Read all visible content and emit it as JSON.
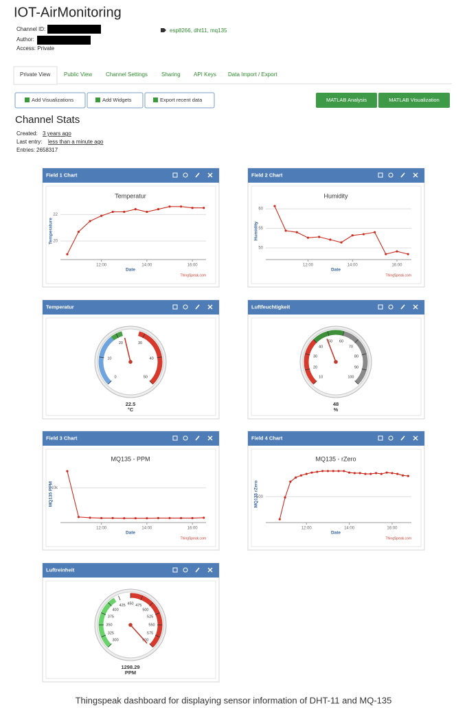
{
  "header": {
    "title": "IOT-AirMonitoring",
    "channel_id_label": "Channel ID:",
    "author_label": "Author:",
    "access": "Access: Private",
    "tags": "esp8266, dht11, mq135"
  },
  "tabs": [
    "Private View",
    "Public View",
    "Channel Settings",
    "Sharing",
    "API Keys",
    "Data Import / Export"
  ],
  "buttons": [
    "Add Visualizations",
    "Add Widgets",
    "Export recent data"
  ],
  "matlab_buttons": [
    "MATLAB Analysis",
    "MATLAB Visualization"
  ],
  "stats": {
    "title": "Channel Stats",
    "created_label": "Created:",
    "created": "3 years ago",
    "last_entry_label": "Last entry:",
    "last_entry": "less than a minute ago",
    "entries_label": "Entries:",
    "entries": 2658317
  },
  "widgets": [
    {
      "header": "Field 1 Chart",
      "chart": {
        "type": "line",
        "title": "Temperatur",
        "x_label": "Date",
        "y_label": "Temperature",
        "credit": "ThingSpeak.com",
        "color": "#cc2a1e",
        "x": [
          10.5,
          11,
          11.5,
          12,
          12.5,
          13,
          13.5,
          14,
          14.5,
          15,
          15.5,
          16,
          16.5
        ],
        "values": [
          19.0,
          20.7,
          21.5,
          21.9,
          22.2,
          22.2,
          22.4,
          22.2,
          22.4,
          22.6,
          22.6,
          22.5,
          22.5
        ],
        "xlim": [
          10.2,
          16.6
        ],
        "xticks": [
          {
            "value": 12,
            "label": "12:00"
          },
          {
            "value": 14,
            "label": "14:00"
          },
          {
            "value": 16,
            "label": "16:00"
          }
        ],
        "ylim": [
          18.6,
          22.9
        ],
        "yticks": [
          20,
          22
        ]
      }
    },
    {
      "header": "Field 2 Chart",
      "chart": {
        "type": "line",
        "title": "Humidity",
        "x_label": "Date",
        "y_label": "Humidity",
        "credit": "ThingSpeak.com",
        "color": "#cc2a1e",
        "x": [
          10.5,
          11,
          11.5,
          12,
          12.5,
          13,
          13.5,
          14,
          14.5,
          15,
          15.5,
          16,
          16.5
        ],
        "values": [
          60.7,
          54.4,
          54.0,
          52.6,
          52.8,
          52.1,
          51.4,
          53.2,
          53.5,
          54.0,
          48.4,
          49.1,
          48.4
        ],
        "xlim": [
          10.1,
          16.65
        ],
        "xticks": [
          {
            "value": 12,
            "label": "12:00"
          },
          {
            "value": 14,
            "label": "14:00"
          },
          {
            "value": 16,
            "label": "16:00"
          }
        ],
        "ylim": [
          47,
          61.6
        ],
        "yticks": [
          50,
          55,
          60
        ]
      }
    },
    {
      "header": "Temperatur",
      "gauge": {
        "type": "gauge",
        "value": 22.5,
        "unit": "°C",
        "lim": [
          0,
          50
        ],
        "ticks": [
          0,
          10,
          20,
          30,
          40,
          50
        ],
        "bands": [
          {
            "from": 0,
            "to": 18,
            "color": "#6fa3de"
          },
          {
            "from": 18,
            "to": 22,
            "color": "#4a9e45"
          },
          {
            "from": 28,
            "to": 50,
            "color": "#d63a2c"
          }
        ]
      }
    },
    {
      "header": "Luftfeuchtigkeit",
      "gauge": {
        "type": "gauge",
        "value": 48,
        "unit": "%",
        "lim": [
          10,
          100
        ],
        "ticks": [
          10,
          20,
          30,
          40,
          50,
          60,
          70,
          80,
          90,
          100
        ],
        "bands": [
          {
            "from": 10,
            "to": 40,
            "color": "#d63a2c"
          },
          {
            "from": 40,
            "to": 60,
            "color": "#3f8f3a"
          },
          {
            "from": 60,
            "to": 100,
            "color": "#8a8a8a"
          }
        ]
      }
    },
    {
      "header": "Field 3 Chart",
      "chart": {
        "type": "line",
        "title": "MQ135 - PPM",
        "x_label": "Date",
        "y_label": "MQ135 PPM",
        "credit": "ThingSpeak.com",
        "color": "#cc2a1e",
        "x": [
          10.5,
          11,
          11.5,
          12,
          12.5,
          13,
          13.5,
          14,
          14.5,
          15,
          15.5,
          16,
          16.5
        ],
        "values": [
          14800,
          1600,
          1400,
          1300,
          1300,
          1250,
          1250,
          1250,
          1300,
          1300,
          1300,
          1300,
          1400
        ],
        "xlim": [
          10.2,
          16.6
        ],
        "xticks": [
          {
            "value": 12,
            "label": "12:00"
          },
          {
            "value": 14,
            "label": "14:00"
          },
          {
            "value": 16,
            "label": "16:00"
          }
        ],
        "ylim": [
          0,
          16400
        ],
        "yticks": [
          {
            "value": 10000,
            "label": "10k"
          }
        ]
      }
    },
    {
      "header": "Field 4 Chart",
      "chart": {
        "type": "line",
        "title": "MQ135 - rZero",
        "x_label": "Date",
        "y_label": "MQ135 rZero",
        "credit": "ThingSpeak.com",
        "color": "#cc2a1e",
        "x": [
          10.75,
          11,
          11.25,
          11.5,
          11.75,
          12,
          12.25,
          12.5,
          12.75,
          13,
          13.25,
          13.5,
          13.75,
          14,
          14.25,
          14.5,
          14.75,
          15,
          15.25,
          15.5,
          15.75,
          16,
          16.25,
          16.5,
          16.75
        ],
        "values": [
          413,
          497,
          558,
          574,
          582,
          588,
          593,
          596,
          599,
          599,
          599,
          599,
          599,
          593,
          591,
          591,
          588,
          588,
          591,
          588,
          593,
          591,
          588,
          582,
          580
        ],
        "xlim": [
          10.1,
          16.9
        ],
        "xticks": [
          {
            "value": 12,
            "label": "12:00"
          },
          {
            "value": 14,
            "label": "14:00"
          },
          {
            "value": 16,
            "label": "16:00"
          }
        ],
        "ylim": [
          400,
          620
        ],
        "yticks": [
          500
        ]
      }
    },
    {
      "header": "Luftreinheit",
      "gauge": {
        "type": "gauge",
        "value": 1298.29,
        "unit": "PPM",
        "lim": [
          300,
          600
        ],
        "ticks": [
          300,
          325,
          350,
          375,
          400,
          425,
          450,
          475,
          500,
          525,
          550,
          575,
          600
        ],
        "bands": [
          {
            "from": 300,
            "to": 415,
            "color": "#6bd26b"
          },
          {
            "from": 450,
            "to": 600,
            "color": "#d63a2c"
          }
        ]
      }
    }
  ],
  "caption": "Thingspeak dashboard for displaying sensor information of DHT-11 and MQ-135"
}
